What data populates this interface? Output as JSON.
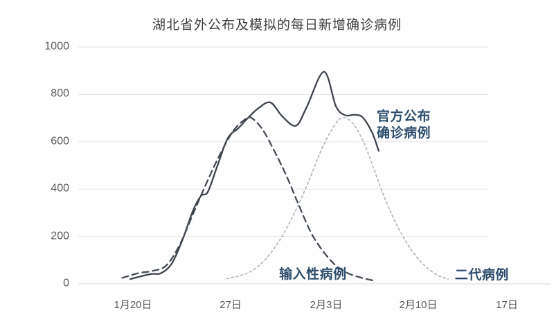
{
  "chart_data": {
    "type": "line",
    "title": "湖北省外公布及模拟的每日新增确诊病例",
    "x_axis": {
      "tick_labels": [
        "1月20日",
        "27日",
        "2月3日",
        "2月10日",
        "17日"
      ],
      "tick_days": [
        0,
        7,
        14,
        21,
        28
      ],
      "unit": "日期 (day, 1月20日 = 0)"
    },
    "y_axis": {
      "ticks": [
        0,
        200,
        400,
        600,
        800,
        1000
      ],
      "range": [
        0,
        1000
      ]
    },
    "grid": true,
    "legend_position": "inline-annotations",
    "annotation_color": "#2e4d6e",
    "series": [
      {
        "id": "official",
        "name": "官方公布确诊病例",
        "label_lines": [
          "官方公布",
          "确诊病例"
        ],
        "label_anchor": {
          "x_day": 18.25,
          "y_value": 740
        },
        "line_style": "solid",
        "color": "#3d434c",
        "points": [
          [
            -0.2,
            20
          ],
          [
            0.6,
            32
          ],
          [
            1.4,
            42
          ],
          [
            2.1,
            45
          ],
          [
            2.9,
            85
          ],
          [
            3.7,
            185
          ],
          [
            4.5,
            310
          ],
          [
            5.1,
            372
          ],
          [
            5.6,
            388
          ],
          [
            6.3,
            495
          ],
          [
            7.1,
            615
          ],
          [
            7.9,
            658
          ],
          [
            8.6,
            700
          ],
          [
            9.4,
            742
          ],
          [
            10.3,
            766
          ],
          [
            11.2,
            706
          ],
          [
            12.2,
            668
          ],
          [
            13.0,
            745
          ],
          [
            14.3,
            896
          ],
          [
            15.2,
            750
          ],
          [
            15.9,
            712
          ],
          [
            16.6,
            714
          ],
          [
            17.2,
            703
          ],
          [
            17.9,
            640
          ],
          [
            18.4,
            562
          ]
        ]
      },
      {
        "id": "imported",
        "name": "输入性病例",
        "label_lines": [
          "输入性病例"
        ],
        "label_anchor": {
          "x_day": 10.95,
          "y_value": 73
        },
        "line_style": "dashed",
        "color": "#454c56",
        "points": [
          [
            -0.8,
            25
          ],
          [
            0.4,
            45
          ],
          [
            1.5,
            55
          ],
          [
            2.5,
            78
          ],
          [
            3.5,
            165
          ],
          [
            4.5,
            295
          ],
          [
            5.5,
            425
          ],
          [
            6.5,
            545
          ],
          [
            7.5,
            645
          ],
          [
            8.4,
            695
          ],
          [
            8.9,
            700
          ],
          [
            9.7,
            652
          ],
          [
            10.6,
            560
          ],
          [
            11.5,
            455
          ],
          [
            12.4,
            335
          ],
          [
            13.3,
            220
          ],
          [
            14.1,
            148
          ],
          [
            15.1,
            82
          ],
          [
            16.1,
            45
          ],
          [
            17.1,
            26
          ],
          [
            18.0,
            14
          ]
        ]
      },
      {
        "id": "secondary",
        "name": "二代病例",
        "label_lines": [
          "二代病例"
        ],
        "label_anchor": {
          "x_day": 24.1,
          "y_value": 70
        },
        "line_style": "dotted",
        "color": "#b5b9be",
        "points": [
          [
            7.0,
            22
          ],
          [
            8.1,
            36
          ],
          [
            9.1,
            62
          ],
          [
            10.1,
            115
          ],
          [
            11.1,
            195
          ],
          [
            12.1,
            300
          ],
          [
            13.1,
            425
          ],
          [
            14.1,
            565
          ],
          [
            14.9,
            652
          ],
          [
            15.6,
            700
          ],
          [
            16.4,
            682
          ],
          [
            17.3,
            595
          ],
          [
            18.1,
            475
          ],
          [
            18.9,
            355
          ],
          [
            19.8,
            245
          ],
          [
            20.7,
            155
          ],
          [
            21.7,
            85
          ],
          [
            22.7,
            40
          ],
          [
            23.6,
            20
          ]
        ]
      }
    ]
  }
}
